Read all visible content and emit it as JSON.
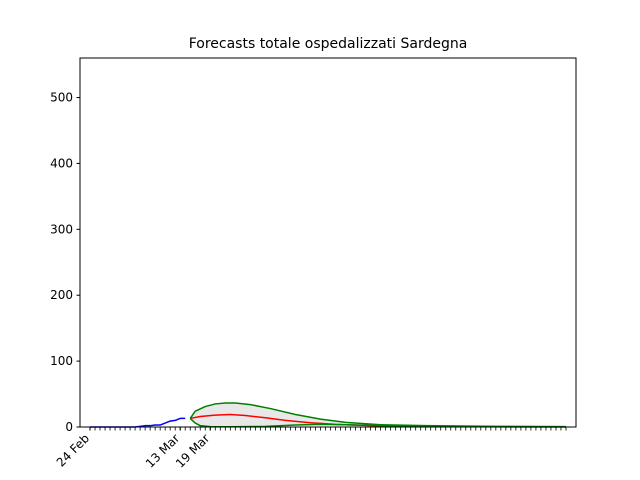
{
  "chart_data": {
    "type": "line",
    "title": "Forecasts totale ospedalizzati Sardegna",
    "xlabel": "",
    "ylabel": "",
    "x_range": [
      "2020-02-22",
      "2020-05-31"
    ],
    "ylim": [
      0,
      560
    ],
    "y_ticks": [
      0,
      100,
      200,
      300,
      400,
      500
    ],
    "x_tick_labels": [
      {
        "date": "2020-02-24",
        "label": "24 Feb"
      },
      {
        "date": "2020-03-13",
        "label": "13 Mar"
      },
      {
        "date": "2020-03-19",
        "label": "19 Mar"
      }
    ],
    "minor_ticks_daily": {
      "from": "2020-02-24",
      "to": "2020-05-29"
    },
    "grid": false,
    "legend": "none",
    "series": [
      {
        "color": "#0000ff",
        "style": "observed",
        "points": [
          [
            "2020-02-24",
            0
          ],
          [
            "2020-02-25",
            0
          ],
          [
            "2020-02-26",
            0
          ],
          [
            "2020-02-27",
            0
          ],
          [
            "2020-02-28",
            0
          ],
          [
            "2020-02-29",
            0
          ],
          [
            "2020-03-01",
            0
          ],
          [
            "2020-03-02",
            0
          ],
          [
            "2020-03-03",
            0
          ],
          [
            "2020-03-04",
            0
          ],
          [
            "2020-03-05",
            1
          ],
          [
            "2020-03-06",
            2
          ],
          [
            "2020-03-07",
            2
          ],
          [
            "2020-03-08",
            3
          ],
          [
            "2020-03-09",
            3
          ],
          [
            "2020-03-10",
            6
          ],
          [
            "2020-03-11",
            9
          ],
          [
            "2020-03-12",
            10
          ],
          [
            "2020-03-13",
            13
          ],
          [
            "2020-03-14",
            13
          ]
        ]
      },
      {
        "color": "#ff0000",
        "style": "forecast-central",
        "points": [
          [
            "2020-03-15",
            13
          ],
          [
            "2020-03-17",
            16
          ],
          [
            "2020-03-20",
            18
          ],
          [
            "2020-03-23",
            19
          ],
          [
            "2020-03-26",
            17.5
          ],
          [
            "2020-03-30",
            14
          ],
          [
            "2020-04-03",
            10
          ],
          [
            "2020-04-08",
            6.5
          ],
          [
            "2020-04-13",
            4
          ],
          [
            "2020-04-20",
            2
          ],
          [
            "2020-04-30",
            1
          ],
          [
            "2020-05-15",
            0.5
          ],
          [
            "2020-05-29",
            0.2
          ]
        ]
      },
      {
        "color": "#008000",
        "style": "forecast-upper",
        "points": [
          [
            "2020-03-15",
            13
          ],
          [
            "2020-03-16",
            24
          ],
          [
            "2020-03-18",
            31
          ],
          [
            "2020-03-20",
            35
          ],
          [
            "2020-03-22",
            36.5
          ],
          [
            "2020-03-24",
            36.5
          ],
          [
            "2020-03-27",
            34
          ],
          [
            "2020-03-31",
            28
          ],
          [
            "2020-04-05",
            19
          ],
          [
            "2020-04-10",
            12
          ],
          [
            "2020-04-15",
            7
          ],
          [
            "2020-04-22",
            3.5
          ],
          [
            "2020-05-01",
            2
          ],
          [
            "2020-05-15",
            1
          ],
          [
            "2020-05-29",
            0.5
          ]
        ]
      },
      {
        "color": "#008000",
        "style": "forecast-lower",
        "points": [
          [
            "2020-03-15",
            13
          ],
          [
            "2020-03-16",
            6
          ],
          [
            "2020-03-17",
            2
          ],
          [
            "2020-03-19",
            0.5
          ],
          [
            "2020-03-23",
            0.3
          ],
          [
            "2020-03-30",
            1
          ],
          [
            "2020-04-05",
            3
          ],
          [
            "2020-04-10",
            4
          ],
          [
            "2020-04-15",
            3.5
          ],
          [
            "2020-04-22",
            2
          ],
          [
            "2020-05-01",
            1
          ],
          [
            "2020-05-15",
            0.3
          ],
          [
            "2020-05-29",
            0.1
          ]
        ]
      }
    ]
  }
}
